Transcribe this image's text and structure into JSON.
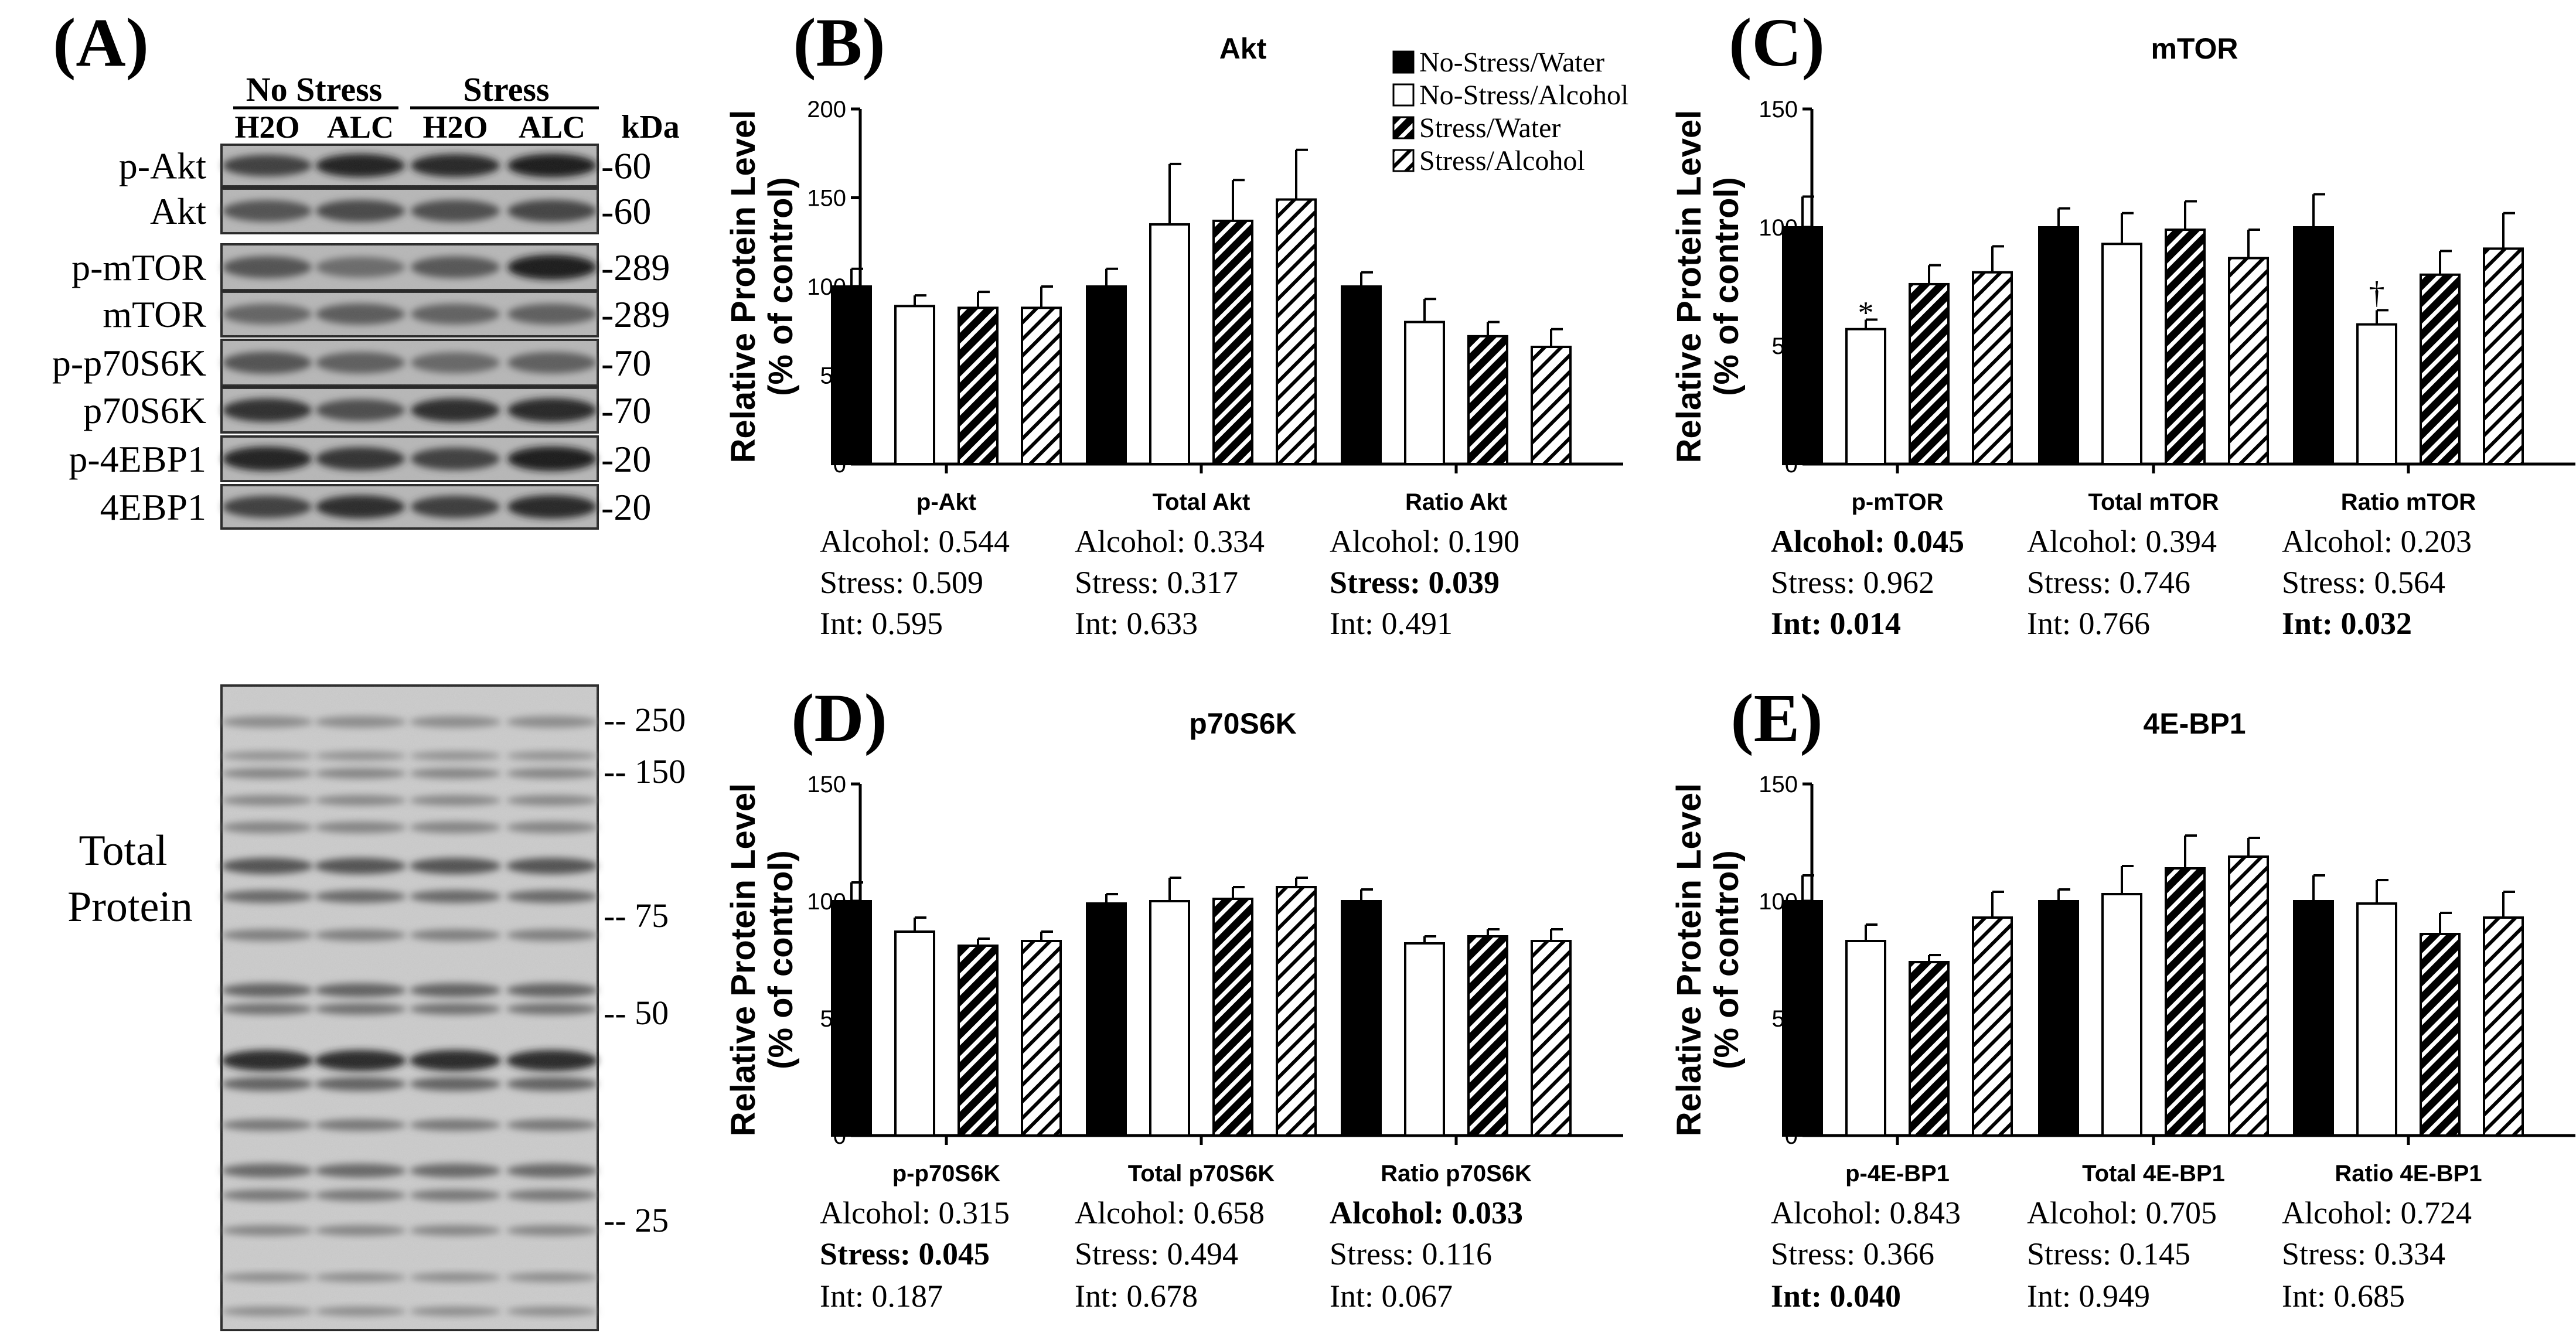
{
  "panel_a": {
    "letter": "(A)",
    "groups": [
      {
        "label": "No Stress",
        "lanes": [
          "H2O",
          "ALC"
        ]
      },
      {
        "label": "Stress",
        "lanes": [
          "H2O",
          "ALC"
        ]
      }
    ],
    "kda_label": "kDa",
    "blots": [
      {
        "label": "p-Akt",
        "kda": "-60"
      },
      {
        "label": "Akt",
        "kda": "-60"
      },
      {
        "label": "p-mTOR",
        "kda": "-289"
      },
      {
        "label": "mTOR",
        "kda": "-289"
      },
      {
        "label": "p-p70S6K",
        "kda": "-70"
      },
      {
        "label": "p70S6K",
        "kda": "-70"
      },
      {
        "label": "p-4EBP1",
        "kda": "-20"
      },
      {
        "label": "4EBP1",
        "kda": "-20"
      }
    ],
    "total_protein_label": [
      "Total",
      "Protein"
    ],
    "ladder": [
      "-- 250",
      "-- 150",
      "-- 75",
      "-- 50",
      "-- 25"
    ]
  },
  "legend": {
    "entries": [
      "No-Stress/Water",
      "No-Stress/Alcohol",
      "Stress/Water",
      "Stress/Alcohol"
    ],
    "colors": [
      "#000000",
      "#ffffff",
      "#000000",
      "#ffffff"
    ],
    "patterns": [
      "solid",
      "open",
      "dense-hatch",
      "light-hatch"
    ]
  },
  "ylabel_lines": [
    "Relative Protein Level",
    "(% of control)"
  ],
  "chart_data": [
    {
      "panel": "(B)",
      "type": "bar",
      "title": "Akt",
      "ylabel": "Relative Protein Level (% of control)",
      "ylim": [
        0,
        200
      ],
      "yticks": [
        0,
        50,
        100,
        150,
        200
      ],
      "categories": [
        "p-Akt",
        "Total Akt",
        "Ratio Akt"
      ],
      "series": [
        {
          "name": "No-Stress/Water",
          "values": [
            100,
            100,
            100
          ],
          "errors": [
            10,
            10,
            8
          ]
        },
        {
          "name": "No-Stress/Alcohol",
          "values": [
            89,
            135,
            80
          ],
          "errors": [
            6,
            34,
            13
          ]
        },
        {
          "name": "Stress/Water",
          "values": [
            88,
            137,
            72
          ],
          "errors": [
            9,
            23,
            8
          ]
        },
        {
          "name": "Stress/Alcohol",
          "values": [
            88,
            149,
            66
          ],
          "errors": [
            12,
            28,
            10
          ]
        }
      ],
      "markers": [],
      "stats": [
        [
          {
            "text": "Alcohol: 0.544",
            "bold": false
          },
          {
            "text": "Stress: 0.509",
            "bold": false
          },
          {
            "text": "Int: 0.595",
            "bold": false
          }
        ],
        [
          {
            "text": "Alcohol: 0.334",
            "bold": false
          },
          {
            "text": "Stress: 0.317",
            "bold": false
          },
          {
            "text": "Int: 0.633",
            "bold": false
          }
        ],
        [
          {
            "text": "Alcohol: 0.190",
            "bold": false
          },
          {
            "text": "Stress: 0.039",
            "bold": true
          },
          {
            "text": "Int: 0.491",
            "bold": false
          }
        ]
      ]
    },
    {
      "panel": "(C)",
      "type": "bar",
      "title": "mTOR",
      "ylabel": "Relative Protein Level (% of control)",
      "ylim": [
        0,
        150
      ],
      "yticks": [
        0,
        50,
        100,
        150
      ],
      "categories": [
        "p-mTOR",
        "Total mTOR",
        "Ratio mTOR"
      ],
      "series": [
        {
          "name": "No-Stress/Water",
          "values": [
            100,
            100,
            100
          ],
          "errors": [
            13,
            8,
            14
          ]
        },
        {
          "name": "No-Stress/Alcohol",
          "values": [
            57,
            93,
            59
          ],
          "errors": [
            4,
            13,
            6
          ]
        },
        {
          "name": "Stress/Water",
          "values": [
            76,
            99,
            80
          ],
          "errors": [
            8,
            12,
            10
          ]
        },
        {
          "name": "Stress/Alcohol",
          "values": [
            81,
            87,
            91
          ],
          "errors": [
            11,
            12,
            15
          ]
        }
      ],
      "markers": [
        {
          "category": 0,
          "series": 1,
          "text": "*"
        },
        {
          "category": 2,
          "series": 1,
          "text": "†"
        }
      ],
      "stats": [
        [
          {
            "text": "Alcohol: 0.045",
            "bold": true
          },
          {
            "text": "Stress: 0.962",
            "bold": false
          },
          {
            "text": "Int: 0.014",
            "bold": true
          }
        ],
        [
          {
            "text": "Alcohol: 0.394",
            "bold": false
          },
          {
            "text": "Stress: 0.746",
            "bold": false
          },
          {
            "text": "Int: 0.766",
            "bold": false
          }
        ],
        [
          {
            "text": "Alcohol: 0.203",
            "bold": false
          },
          {
            "text": "Stress: 0.564",
            "bold": false
          },
          {
            "text": "Int: 0.032",
            "bold": true
          }
        ]
      ]
    },
    {
      "panel": "(D)",
      "type": "bar",
      "title": "p70S6K",
      "ylabel": "Relative Protein Level (% of control)",
      "ylim": [
        0,
        150
      ],
      "yticks": [
        0,
        50,
        100,
        150
      ],
      "categories": [
        "p-p70S6K",
        "Total p70S6K",
        "Ratio p70S6K"
      ],
      "series": [
        {
          "name": "No-Stress/Water",
          "values": [
            100,
            99,
            100
          ],
          "errors": [
            8,
            4,
            5
          ]
        },
        {
          "name": "No-Stress/Alcohol",
          "values": [
            87,
            100,
            82
          ],
          "errors": [
            6,
            10,
            3
          ]
        },
        {
          "name": "Stress/Water",
          "values": [
            81,
            101,
            85
          ],
          "errors": [
            3,
            5,
            3
          ]
        },
        {
          "name": "Stress/Alcohol",
          "values": [
            83,
            106,
            83
          ],
          "errors": [
            4,
            4,
            5
          ]
        }
      ],
      "markers": [],
      "stats": [
        [
          {
            "text": "Alcohol: 0.315",
            "bold": false
          },
          {
            "text": "Stress: 0.045",
            "bold": true
          },
          {
            "text": "Int: 0.187",
            "bold": false
          }
        ],
        [
          {
            "text": "Alcohol: 0.658",
            "bold": false
          },
          {
            "text": "Stress: 0.494",
            "bold": false
          },
          {
            "text": "Int: 0.678",
            "bold": false
          }
        ],
        [
          {
            "text": "Alcohol: 0.033",
            "bold": true
          },
          {
            "text": "Stress: 0.116",
            "bold": false
          },
          {
            "text": "Int: 0.067",
            "bold": false
          }
        ]
      ]
    },
    {
      "panel": "(E)",
      "type": "bar",
      "title": "4E-BP1",
      "ylabel": "Relative Protein Level (% of control)",
      "ylim": [
        0,
        150
      ],
      "yticks": [
        0,
        50,
        100,
        150
      ],
      "categories": [
        "p-4E-BP1",
        "Total 4E-BP1",
        "Ratio 4E-BP1"
      ],
      "series": [
        {
          "name": "No-Stress/Water",
          "values": [
            100,
            100,
            100
          ],
          "errors": [
            11,
            5,
            11
          ]
        },
        {
          "name": "No-Stress/Alcohol",
          "values": [
            83,
            103,
            99
          ],
          "errors": [
            7,
            12,
            10
          ]
        },
        {
          "name": "Stress/Water",
          "values": [
            74,
            114,
            86
          ],
          "errors": [
            3,
            14,
            9
          ]
        },
        {
          "name": "Stress/Alcohol",
          "values": [
            93,
            119,
            93
          ],
          "errors": [
            11,
            8,
            11
          ]
        }
      ],
      "markers": [],
      "stats": [
        [
          {
            "text": "Alcohol: 0.843",
            "bold": false
          },
          {
            "text": "Stress: 0.366",
            "bold": false
          },
          {
            "text": "Int: 0.040",
            "bold": true
          }
        ],
        [
          {
            "text": "Alcohol: 0.705",
            "bold": false
          },
          {
            "text": "Stress: 0.145",
            "bold": false
          },
          {
            "text": "Int: 0.949",
            "bold": false
          }
        ],
        [
          {
            "text": "Alcohol: 0.724",
            "bold": false
          },
          {
            "text": "Stress: 0.334",
            "bold": false
          },
          {
            "text": "Int: 0.685",
            "bold": false
          }
        ]
      ]
    }
  ]
}
